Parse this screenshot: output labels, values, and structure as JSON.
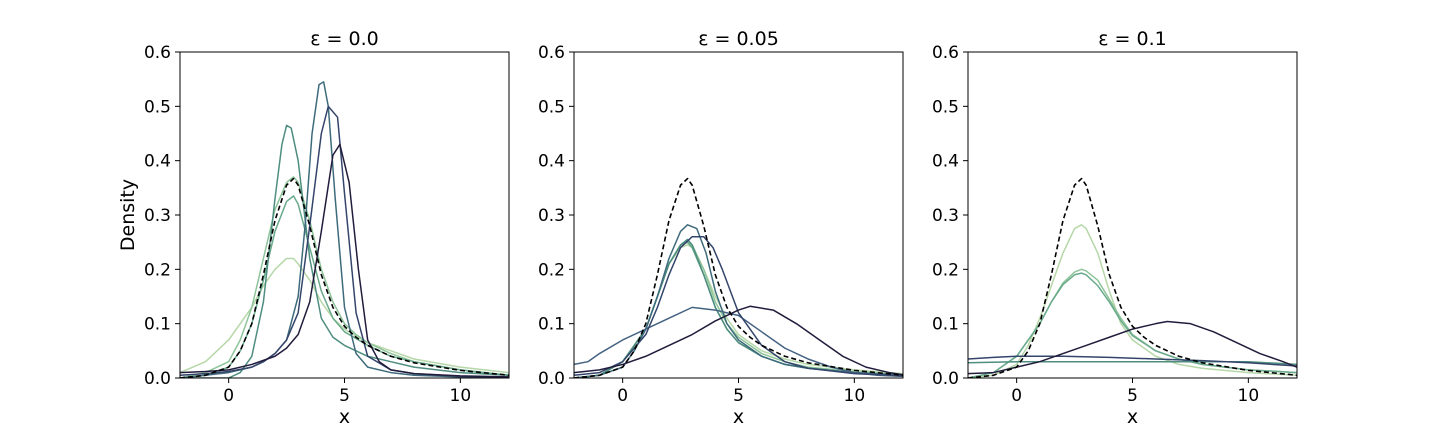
{
  "chart_data": [
    {
      "type": "line",
      "title": "ε = 0.0",
      "xlabel": "x",
      "ylabel": "Density",
      "xlim": [
        -2.1,
        12.1
      ],
      "ylim": [
        0,
        0.6
      ],
      "xticks": [
        0,
        5,
        10
      ],
      "yticks": [
        0.0,
        0.1,
        0.2,
        0.3,
        0.4,
        0.5,
        0.6
      ],
      "grid": false,
      "series": [
        {
          "color": "#b6d7a8",
          "dashed": false,
          "x": [
            -2.1,
            -1,
            0,
            1,
            1.5,
            2,
            2.5,
            2.8,
            3,
            3.5,
            4,
            4.5,
            5,
            6,
            7,
            8,
            10,
            12.1
          ],
          "y": [
            0.01,
            0.03,
            0.07,
            0.13,
            0.17,
            0.2,
            0.22,
            0.22,
            0.21,
            0.18,
            0.14,
            0.11,
            0.09,
            0.065,
            0.05,
            0.035,
            0.02,
            0.01
          ]
        },
        {
          "color": "#8ec49a",
          "dashed": false,
          "x": [
            -2.1,
            -1,
            0,
            0.5,
            1,
            1.5,
            2,
            2.5,
            2.8,
            3,
            3.5,
            4,
            4.5,
            5,
            5.5,
            6,
            7,
            8,
            10,
            12.1
          ],
          "y": [
            0.0,
            0.01,
            0.03,
            0.07,
            0.13,
            0.22,
            0.31,
            0.36,
            0.37,
            0.36,
            0.29,
            0.2,
            0.14,
            0.1,
            0.08,
            0.065,
            0.045,
            0.03,
            0.015,
            0.005
          ]
        },
        {
          "color": "#6aaa8c",
          "dashed": false,
          "x": [
            -2.1,
            -1,
            0,
            0.5,
            1,
            1.5,
            2,
            2.5,
            2.8,
            3,
            3.5,
            4,
            4.5,
            5,
            6,
            7,
            8,
            10,
            12.1
          ],
          "y": [
            0.0,
            0.005,
            0.02,
            0.05,
            0.1,
            0.18,
            0.27,
            0.325,
            0.335,
            0.32,
            0.24,
            0.16,
            0.11,
            0.085,
            0.06,
            0.04,
            0.03,
            0.015,
            0.005
          ]
        },
        {
          "color": "#4e8d7f",
          "dashed": false,
          "x": [
            -2.1,
            -1,
            0,
            0.5,
            1,
            1.5,
            2,
            2.3,
            2.5,
            2.7,
            3,
            3.5,
            4,
            4.5,
            5,
            6,
            7,
            8,
            10,
            12.1
          ],
          "y": [
            0.0,
            0.0,
            0.0,
            0.01,
            0.04,
            0.14,
            0.33,
            0.43,
            0.465,
            0.46,
            0.4,
            0.22,
            0.11,
            0.075,
            0.06,
            0.04,
            0.03,
            0.02,
            0.01,
            0.005
          ]
        },
        {
          "color": "#3e6b7c",
          "dashed": false,
          "x": [
            -2.1,
            -1,
            0,
            1,
            1.5,
            2,
            2.5,
            3,
            3.3,
            3.6,
            3.9,
            4.1,
            4.3,
            4.6,
            5,
            5.5,
            6,
            7,
            8,
            10,
            12.1
          ],
          "y": [
            0.0,
            0.005,
            0.01,
            0.02,
            0.03,
            0.045,
            0.07,
            0.15,
            0.28,
            0.45,
            0.54,
            0.545,
            0.5,
            0.33,
            0.13,
            0.045,
            0.02,
            0.01,
            0.005,
            0.002,
            0.0
          ]
        },
        {
          "color": "#34456b",
          "dashed": false,
          "x": [
            -2.1,
            -1,
            0,
            1,
            1.5,
            2,
            2.5,
            3,
            3.5,
            4,
            4.3,
            4.7,
            5,
            5.5,
            6,
            7,
            8,
            10,
            12.1
          ],
          "y": [
            0.005,
            0.008,
            0.012,
            0.02,
            0.03,
            0.045,
            0.07,
            0.12,
            0.28,
            0.45,
            0.5,
            0.48,
            0.34,
            0.12,
            0.04,
            0.015,
            0.008,
            0.003,
            0.001
          ]
        },
        {
          "color": "#221c3c",
          "dashed": false,
          "x": [
            -2.1,
            -1,
            0,
            1,
            2,
            2.5,
            3,
            3.5,
            4,
            4.5,
            4.8,
            5.2,
            5.6,
            6,
            6.5,
            7,
            8,
            10,
            12.1
          ],
          "y": [
            0.01,
            0.012,
            0.015,
            0.025,
            0.04,
            0.055,
            0.08,
            0.14,
            0.27,
            0.41,
            0.43,
            0.36,
            0.2,
            0.07,
            0.03,
            0.015,
            0.008,
            0.004,
            0.002
          ]
        },
        {
          "color": "#000000",
          "dashed": true,
          "x": [
            -2.1,
            -1,
            0,
            0.5,
            1,
            1.5,
            2,
            2.5,
            2.8,
            3,
            3.5,
            4,
            4.5,
            5,
            5.5,
            6,
            7,
            8,
            10,
            12.1
          ],
          "y": [
            0.0,
            0.005,
            0.02,
            0.05,
            0.1,
            0.19,
            0.29,
            0.355,
            0.367,
            0.355,
            0.28,
            0.19,
            0.13,
            0.095,
            0.075,
            0.06,
            0.04,
            0.028,
            0.014,
            0.005
          ]
        }
      ]
    },
    {
      "type": "line",
      "title": "ε = 0.05",
      "xlabel": "x",
      "ylabel": "",
      "xlim": [
        -2.1,
        12.1
      ],
      "ylim": [
        0,
        0.6
      ],
      "xticks": [
        0,
        5,
        10
      ],
      "yticks": [
        0.0,
        0.1,
        0.2,
        0.3,
        0.4,
        0.5,
        0.6
      ],
      "grid": false,
      "series": [
        {
          "color": "#b6d7a8",
          "dashed": false,
          "x": [
            -2.1,
            -1,
            0,
            1,
            1.5,
            2,
            2.5,
            2.8,
            3,
            3.5,
            4,
            4.5,
            5,
            6,
            7,
            8,
            10,
            12.1
          ],
          "y": [
            0.0,
            0.005,
            0.03,
            0.09,
            0.15,
            0.21,
            0.24,
            0.245,
            0.24,
            0.2,
            0.15,
            0.11,
            0.08,
            0.05,
            0.035,
            0.025,
            0.015,
            0.008
          ]
        },
        {
          "color": "#8ec49a",
          "dashed": false,
          "x": [
            -2.1,
            -1,
            0,
            1,
            1.5,
            2,
            2.5,
            2.8,
            3,
            3.5,
            4,
            4.5,
            5,
            6,
            7,
            8,
            10,
            12.1
          ],
          "y": [
            0.0,
            0.005,
            0.03,
            0.09,
            0.15,
            0.21,
            0.245,
            0.25,
            0.245,
            0.2,
            0.14,
            0.1,
            0.075,
            0.045,
            0.03,
            0.02,
            0.012,
            0.006
          ]
        },
        {
          "color": "#6aaa8c",
          "dashed": false,
          "x": [
            -2.1,
            -1,
            0,
            1,
            1.5,
            2,
            2.5,
            2.8,
            3,
            3.5,
            4,
            4.5,
            5,
            6,
            7,
            8,
            10,
            12.1
          ],
          "y": [
            0.0,
            0.005,
            0.03,
            0.09,
            0.15,
            0.21,
            0.245,
            0.25,
            0.24,
            0.19,
            0.13,
            0.09,
            0.065,
            0.04,
            0.025,
            0.018,
            0.01,
            0.005
          ]
        },
        {
          "color": "#4e8d7f",
          "dashed": false,
          "x": [
            -2.1,
            -1,
            0,
            1,
            1.5,
            2,
            2.5,
            2.8,
            3,
            3.5,
            4,
            4.5,
            5,
            6,
            7,
            8,
            10,
            12.1
          ],
          "y": [
            0.0,
            0.005,
            0.03,
            0.09,
            0.15,
            0.21,
            0.245,
            0.255,
            0.245,
            0.19,
            0.13,
            0.09,
            0.065,
            0.04,
            0.025,
            0.018,
            0.01,
            0.005
          ]
        },
        {
          "color": "#3e6b7c",
          "dashed": false,
          "x": [
            -2.1,
            -1,
            0,
            0.5,
            1,
            1.5,
            2,
            2.5,
            2.8,
            3.2,
            3.6,
            4,
            4.5,
            5,
            6,
            7,
            8,
            10,
            12.1
          ],
          "y": [
            0.0,
            0.005,
            0.02,
            0.05,
            0.09,
            0.15,
            0.22,
            0.27,
            0.282,
            0.275,
            0.23,
            0.16,
            0.1,
            0.07,
            0.04,
            0.025,
            0.018,
            0.01,
            0.005
          ]
        },
        {
          "color": "#446282",
          "dashed": false,
          "x": [
            -2.1,
            -1.5,
            -1,
            0,
            1,
            2,
            3,
            4,
            5,
            6,
            7,
            8,
            9,
            10,
            11,
            12.1
          ],
          "y": [
            0.025,
            0.03,
            0.045,
            0.07,
            0.09,
            0.11,
            0.13,
            0.125,
            0.115,
            0.085,
            0.055,
            0.035,
            0.02,
            0.01,
            0.005,
            0.003
          ]
        },
        {
          "color": "#34456b",
          "dashed": false,
          "x": [
            -2.1,
            -1,
            0,
            1,
            1.5,
            2,
            2.5,
            3,
            3.5,
            3.9,
            4.3,
            5,
            6,
            7,
            8,
            10,
            12.1
          ],
          "y": [
            0.005,
            0.01,
            0.03,
            0.08,
            0.13,
            0.19,
            0.24,
            0.26,
            0.26,
            0.24,
            0.2,
            0.12,
            0.06,
            0.03,
            0.018,
            0.008,
            0.004
          ]
        },
        {
          "color": "#221c3c",
          "dashed": false,
          "x": [
            -2.1,
            -1,
            0,
            1,
            2,
            3,
            4,
            5,
            5.5,
            6.5,
            7.5,
            8.5,
            9.5,
            10.5,
            11.5,
            12.1
          ],
          "y": [
            0.01,
            0.015,
            0.025,
            0.04,
            0.06,
            0.08,
            0.105,
            0.125,
            0.132,
            0.125,
            0.1,
            0.07,
            0.04,
            0.02,
            0.01,
            0.006
          ]
        },
        {
          "color": "#000000",
          "dashed": true,
          "x": [
            -2.1,
            -1,
            0,
            0.5,
            1,
            1.5,
            2,
            2.5,
            2.8,
            3,
            3.5,
            4,
            4.5,
            5,
            5.5,
            6,
            7,
            8,
            10,
            12.1
          ],
          "y": [
            0.0,
            0.005,
            0.02,
            0.05,
            0.1,
            0.19,
            0.29,
            0.355,
            0.367,
            0.355,
            0.28,
            0.19,
            0.13,
            0.095,
            0.075,
            0.06,
            0.04,
            0.028,
            0.014,
            0.005
          ]
        }
      ]
    },
    {
      "type": "line",
      "title": "ε = 0.1",
      "xlabel": "x",
      "ylabel": "",
      "xlim": [
        -2.1,
        12.1
      ],
      "ylim": [
        0,
        0.6
      ],
      "xticks": [
        0,
        5,
        10
      ],
      "yticks": [
        0.0,
        0.1,
        0.2,
        0.3,
        0.4,
        0.5,
        0.6
      ],
      "grid": false,
      "series": [
        {
          "color": "#b6d7a8",
          "dashed": false,
          "x": [
            -2.1,
            -1,
            0,
            0.5,
            1,
            1.5,
            2,
            2.5,
            2.8,
            3,
            3.5,
            4,
            4.5,
            5,
            6,
            7,
            8,
            10,
            12.1
          ],
          "y": [
            0.0,
            0.005,
            0.025,
            0.06,
            0.11,
            0.17,
            0.23,
            0.275,
            0.282,
            0.275,
            0.23,
            0.16,
            0.1,
            0.07,
            0.04,
            0.025,
            0.018,
            0.01,
            0.005
          ]
        },
        {
          "color": "#8ec49a",
          "dashed": false,
          "x": [
            -2.1,
            -1,
            0,
            1,
            1.5,
            2,
            2.5,
            2.8,
            3,
            3.5,
            4,
            4.5,
            5,
            6,
            7,
            8,
            10,
            12.1
          ],
          "y": [
            0.0,
            0.01,
            0.04,
            0.1,
            0.14,
            0.175,
            0.195,
            0.2,
            0.197,
            0.18,
            0.145,
            0.11,
            0.08,
            0.05,
            0.035,
            0.025,
            0.015,
            0.01
          ]
        },
        {
          "color": "#6aaa8c",
          "dashed": false,
          "x": [
            -2.1,
            -1,
            0,
            1,
            1.5,
            2,
            2.5,
            2.8,
            3,
            3.5,
            4,
            4.5,
            5,
            6,
            7,
            8,
            10,
            12.1
          ],
          "y": [
            0.0,
            0.01,
            0.04,
            0.1,
            0.14,
            0.172,
            0.19,
            0.193,
            0.19,
            0.17,
            0.14,
            0.105,
            0.078,
            0.05,
            0.035,
            0.025,
            0.015,
            0.01
          ]
        },
        {
          "color": "#4e8d7f",
          "dashed": false,
          "x": [
            -2.1,
            0,
            2,
            4,
            6,
            8,
            10,
            12.1
          ],
          "y": [
            0.028,
            0.03,
            0.03,
            0.03,
            0.03,
            0.03,
            0.03,
            0.025
          ]
        },
        {
          "color": "#34456b",
          "dashed": false,
          "x": [
            -2.1,
            -1,
            0,
            2,
            4,
            6,
            8,
            10,
            12.1
          ],
          "y": [
            0.035,
            0.038,
            0.04,
            0.04,
            0.038,
            0.035,
            0.032,
            0.028,
            0.022
          ]
        },
        {
          "color": "#221c3c",
          "dashed": false,
          "x": [
            -2.1,
            -1,
            0,
            1,
            2,
            3,
            4,
            5,
            6,
            6.5,
            7.5,
            8.5,
            9.5,
            10.5,
            11.5,
            12.1
          ],
          "y": [
            0.008,
            0.01,
            0.02,
            0.03,
            0.045,
            0.06,
            0.075,
            0.09,
            0.1,
            0.104,
            0.1,
            0.085,
            0.065,
            0.045,
            0.03,
            0.02
          ]
        },
        {
          "color": "#000000",
          "dashed": true,
          "x": [
            -2.1,
            -1,
            0,
            0.5,
            1,
            1.5,
            2,
            2.5,
            2.8,
            3,
            3.5,
            4,
            4.5,
            5,
            5.5,
            6,
            7,
            8,
            10,
            12.1
          ],
          "y": [
            0.0,
            0.005,
            0.02,
            0.05,
            0.1,
            0.19,
            0.29,
            0.355,
            0.367,
            0.355,
            0.28,
            0.19,
            0.13,
            0.095,
            0.075,
            0.06,
            0.04,
            0.028,
            0.014,
            0.005
          ]
        }
      ]
    }
  ]
}
